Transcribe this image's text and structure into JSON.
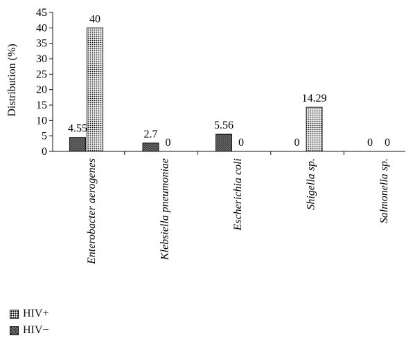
{
  "chart_data": {
    "type": "bar",
    "ylabel": "Distribution (%)",
    "ylim": [
      0,
      45
    ],
    "yticks": [
      0,
      5,
      10,
      15,
      20,
      25,
      30,
      35,
      40,
      45
    ],
    "categories": [
      "Enterobacter aerogenes",
      "Klebsiella pneumoniae",
      "Escherichia coli",
      "Shigella sp.",
      "Salmonella sp."
    ],
    "series": [
      {
        "name": "HIV−",
        "values": [
          4.55,
          2.7,
          5.56,
          0,
          0
        ],
        "labels": [
          "4.55",
          "2.7",
          "5.56",
          "0",
          "0"
        ]
      },
      {
        "name": "HIV+",
        "values": [
          40,
          0,
          0,
          14.29,
          0
        ],
        "labels": [
          "40",
          "0",
          "0",
          "14.29",
          "0"
        ]
      }
    ],
    "legend_position": "bottom-left",
    "grid": false
  },
  "legend": {
    "items": [
      {
        "label": "HIV+"
      },
      {
        "label": "HIV−"
      }
    ]
  }
}
